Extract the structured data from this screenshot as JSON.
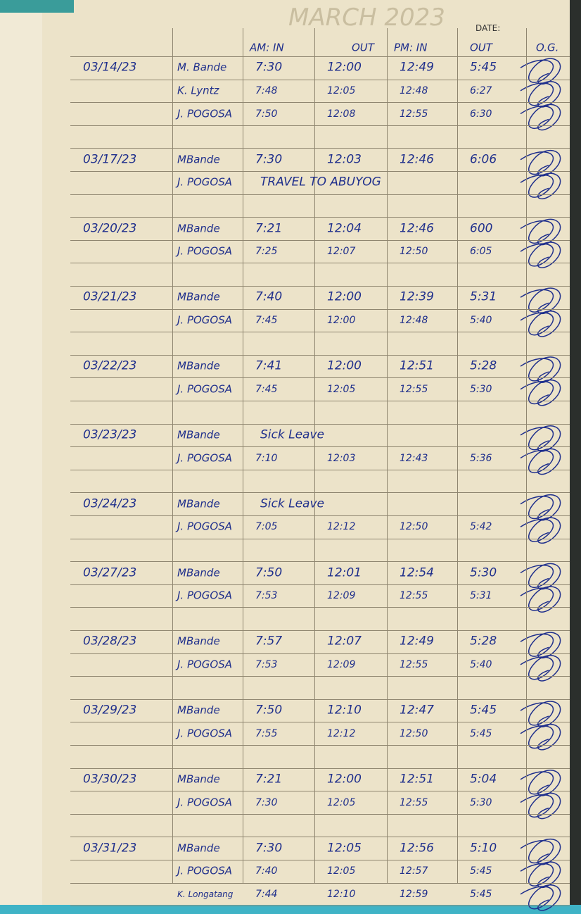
{
  "header": {
    "title": "MARCH 2023",
    "date_label": "DATE:",
    "columns": [
      "AM: IN",
      "OUT",
      "PM: IN",
      "OUT",
      "O.G."
    ]
  },
  "entries": [
    {
      "date": "03/14/23",
      "rows": [
        {
          "name": "M. Bande",
          "am_in": "7:30",
          "am_out": "12:00",
          "pm_in": "12:49",
          "pm_out": "5:45"
        },
        {
          "name": "K. Lyntz",
          "am_in": "7:48",
          "am_out": "12:05",
          "pm_in": "12:48",
          "pm_out": "6:27"
        },
        {
          "name": "J. POGOSA",
          "am_in": "7:50",
          "am_out": "12:08",
          "pm_in": "12:55",
          "pm_out": "6:30"
        }
      ]
    },
    {
      "date": "03/17/23",
      "rows": [
        {
          "name": "MBande",
          "am_in": "7:30",
          "am_out": "12:03",
          "pm_in": "12:46",
          "pm_out": "6:06"
        },
        {
          "name": "J. POGOSA",
          "note": "TRAVEL TO ABUYOG"
        }
      ]
    },
    {
      "date": "03/20/23",
      "rows": [
        {
          "name": "MBande",
          "am_in": "7:21",
          "am_out": "12:04",
          "pm_in": "12:46",
          "pm_out": "600"
        },
        {
          "name": "J. POGOSA",
          "am_in": "7:25",
          "am_out": "12:07",
          "pm_in": "12:50",
          "pm_out": "6:05"
        }
      ]
    },
    {
      "date": "03/21/23",
      "rows": [
        {
          "name": "MBande",
          "am_in": "7:40",
          "am_out": "12:00",
          "pm_in": "12:39",
          "pm_out": "5:31"
        },
        {
          "name": "J. POGOSA",
          "am_in": "7:45",
          "am_out": "12:00",
          "pm_in": "12:48",
          "pm_out": "5:40"
        }
      ]
    },
    {
      "date": "03/22/23",
      "rows": [
        {
          "name": "MBande",
          "am_in": "7:41",
          "am_out": "12:00",
          "pm_in": "12:51",
          "pm_out": "5:28"
        },
        {
          "name": "J. POGOSA",
          "am_in": "7:45",
          "am_out": "12:05",
          "pm_in": "12:55",
          "pm_out": "5:30"
        }
      ]
    },
    {
      "date": "03/23/23",
      "rows": [
        {
          "name": "MBande",
          "note": "Sick Leave"
        },
        {
          "name": "J. POGOSA",
          "am_in": "7:10",
          "am_out": "12:03",
          "pm_in": "12:43",
          "pm_out": "5:36"
        }
      ]
    },
    {
      "date": "03/24/23",
      "rows": [
        {
          "name": "MBande",
          "note": "Sick Leave"
        },
        {
          "name": "J. POGOSA",
          "am_in": "7:05",
          "am_out": "12:12",
          "pm_in": "12:50",
          "pm_out": "5:42"
        }
      ]
    },
    {
      "date": "03/27/23",
      "rows": [
        {
          "name": "MBande",
          "am_in": "7:50",
          "am_out": "12:01",
          "pm_in": "12:54",
          "pm_out": "5:30"
        },
        {
          "name": "J. POGOSA",
          "am_in": "7:53",
          "am_out": "12:09",
          "pm_in": "12:55",
          "pm_out": "5:31"
        }
      ]
    },
    {
      "date": "03/28/23",
      "rows": [
        {
          "name": "MBande",
          "am_in": "7:57",
          "am_out": "12:07",
          "pm_in": "12:49",
          "pm_out": "5:28"
        },
        {
          "name": "J. POGOSA",
          "am_in": "7:53",
          "am_out": "12:09",
          "pm_in": "12:55",
          "pm_out": "5:40"
        }
      ]
    },
    {
      "date": "03/29/23",
      "rows": [
        {
          "name": "MBande",
          "am_in": "7:50",
          "am_out": "12:10",
          "pm_in": "12:47",
          "pm_out": "5:45"
        },
        {
          "name": "J. POGOSA",
          "am_in": "7:55",
          "am_out": "12:12",
          "pm_in": "12:50",
          "pm_out": "5:45"
        }
      ]
    },
    {
      "date": "03/30/23",
      "rows": [
        {
          "name": "MBande",
          "am_in": "7:21",
          "am_out": "12:00",
          "pm_in": "12:51",
          "pm_out": "5:04"
        },
        {
          "name": "J. POGOSA",
          "am_in": "7:30",
          "am_out": "12:05",
          "pm_in": "12:55",
          "pm_out": "5:30"
        }
      ]
    },
    {
      "date": "03/31/23",
      "rows": [
        {
          "name": "MBande",
          "am_in": "7:30",
          "am_out": "12:05",
          "pm_in": "12:56",
          "pm_out": "5:10"
        },
        {
          "name": "J. POGOSA",
          "am_in": "7:40",
          "am_out": "12:05",
          "pm_in": "12:57",
          "pm_out": "5:45"
        },
        {
          "name": "K. Longatang",
          "am_in": "7:44",
          "am_out": "12:10",
          "pm_in": "12:59",
          "pm_out": "5:45"
        }
      ]
    }
  ]
}
